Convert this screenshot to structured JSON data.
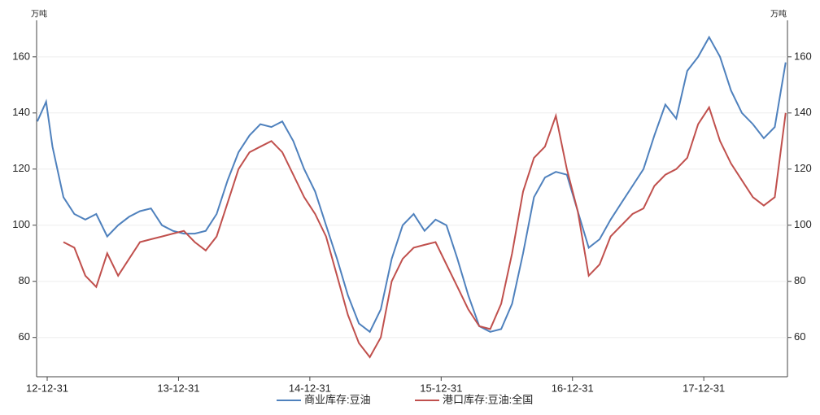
{
  "chart_data": {
    "type": "line",
    "y_label": "万吨",
    "y2_label": "万吨",
    "x": [
      "12-12-03",
      "12-12-28",
      "13-01-15",
      "13-02-15",
      "13-03-15",
      "13-04-15",
      "13-05-15",
      "13-06-15",
      "13-07-15",
      "13-08-15",
      "13-09-15",
      "13-10-15",
      "13-11-15",
      "13-12-15",
      "14-01-15",
      "14-02-15",
      "14-03-15",
      "14-04-15",
      "14-05-15",
      "14-06-15",
      "14-07-15",
      "14-08-15",
      "14-09-15",
      "14-10-15",
      "14-11-15",
      "14-12-15",
      "15-01-15",
      "15-02-15",
      "15-03-15",
      "15-04-15",
      "15-05-15",
      "15-06-15",
      "15-07-15",
      "15-08-15",
      "15-09-15",
      "15-10-15",
      "15-11-15",
      "15-12-15",
      "16-01-15",
      "16-02-15",
      "16-03-15",
      "16-04-15",
      "16-05-15",
      "16-06-15",
      "16-07-15",
      "16-08-15",
      "16-09-15",
      "16-10-15",
      "16-11-15",
      "16-12-15",
      "17-01-15",
      "17-02-15",
      "17-03-15",
      "17-04-15",
      "17-05-15",
      "17-06-15",
      "17-07-15",
      "17-08-15",
      "17-09-15",
      "17-10-15",
      "17-11-15",
      "17-12-15",
      "18-01-15",
      "18-02-15",
      "18-03-15",
      "18-04-15",
      "18-05-15",
      "18-06-15",
      "18-07-15",
      "18-08-15"
    ],
    "xlim": [
      "12-12-01",
      "18-08-20"
    ],
    "xticks": [
      "12-12-31",
      "13-12-31",
      "14-12-31",
      "15-12-31",
      "16-12-31",
      "17-12-31"
    ],
    "ylim": [
      46,
      173
    ],
    "yticks": [
      60,
      80,
      100,
      120,
      140,
      160
    ],
    "y2lim": [
      46,
      173
    ],
    "y2ticks": [
      60,
      80,
      100,
      120,
      140,
      160
    ],
    "grid": true,
    "series": [
      {
        "name": "商业库存:豆油",
        "color": "#4f81bd",
        "values": [
          137,
          144,
          128,
          110,
          104,
          102,
          104,
          96,
          100,
          103,
          105,
          106,
          100,
          98,
          97,
          97,
          98,
          104,
          116,
          126,
          132,
          136,
          135,
          137,
          130,
          120,
          112,
          100,
          88,
          75,
          65,
          62,
          70,
          88,
          100,
          104,
          98,
          102,
          100,
          88,
          75,
          64,
          62,
          63,
          72,
          90,
          110,
          117,
          119,
          118,
          105,
          92,
          95,
          102,
          108,
          114,
          120,
          132,
          143,
          138,
          155,
          160,
          167,
          160,
          148,
          140,
          136,
          131,
          135,
          158
        ]
      },
      {
        "name": "港口库存:豆油:全国",
        "color": "#c0504d",
        "axis": "y2",
        "values": [
          null,
          null,
          null,
          94,
          92,
          82,
          78,
          90,
          82,
          88,
          94,
          95,
          96,
          97,
          98,
          94,
          91,
          96,
          108,
          120,
          126,
          128,
          130,
          126,
          118,
          110,
          104,
          96,
          82,
          68,
          58,
          53,
          60,
          80,
          88,
          92,
          93,
          94,
          86,
          78,
          70,
          64,
          63,
          72,
          90,
          112,
          124,
          128,
          139,
          120,
          105,
          82,
          86,
          96,
          100,
          104,
          106,
          114,
          118,
          120,
          124,
          136,
          142,
          130,
          122,
          116,
          110,
          107,
          110,
          140
        ]
      }
    ]
  }
}
